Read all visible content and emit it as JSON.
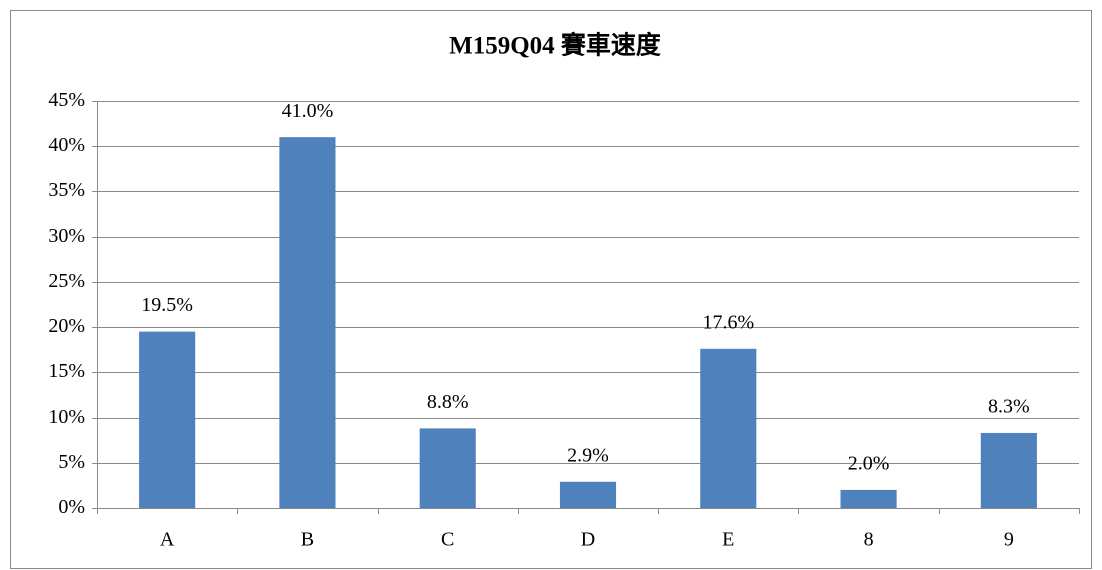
{
  "chart_data": {
    "type": "bar",
    "title": "M159Q04 賽車速度",
    "categories": [
      "A",
      "B",
      "C",
      "D",
      "E",
      "8",
      "9"
    ],
    "values": [
      19.5,
      41.0,
      8.8,
      2.9,
      17.6,
      2.0,
      8.3
    ],
    "value_labels": [
      "19.5%",
      "41.0%",
      "8.8%",
      "2.9%",
      "17.6%",
      "2.0%",
      "8.3%"
    ],
    "color": "#4f81bd",
    "ylim": [
      0,
      45
    ],
    "yticks": [
      {
        "value": 0,
        "label": "0%"
      },
      {
        "value": 5,
        "label": "5%"
      },
      {
        "value": 10,
        "label": "10%"
      },
      {
        "value": 15,
        "label": "15%"
      },
      {
        "value": 20,
        "label": "20%"
      },
      {
        "value": 25,
        "label": "25%"
      },
      {
        "value": 30,
        "label": "30%"
      },
      {
        "value": 35,
        "label": "35%"
      },
      {
        "value": 40,
        "label": "40%"
      },
      {
        "value": 45,
        "label": "45%"
      }
    ],
    "grid": true
  }
}
